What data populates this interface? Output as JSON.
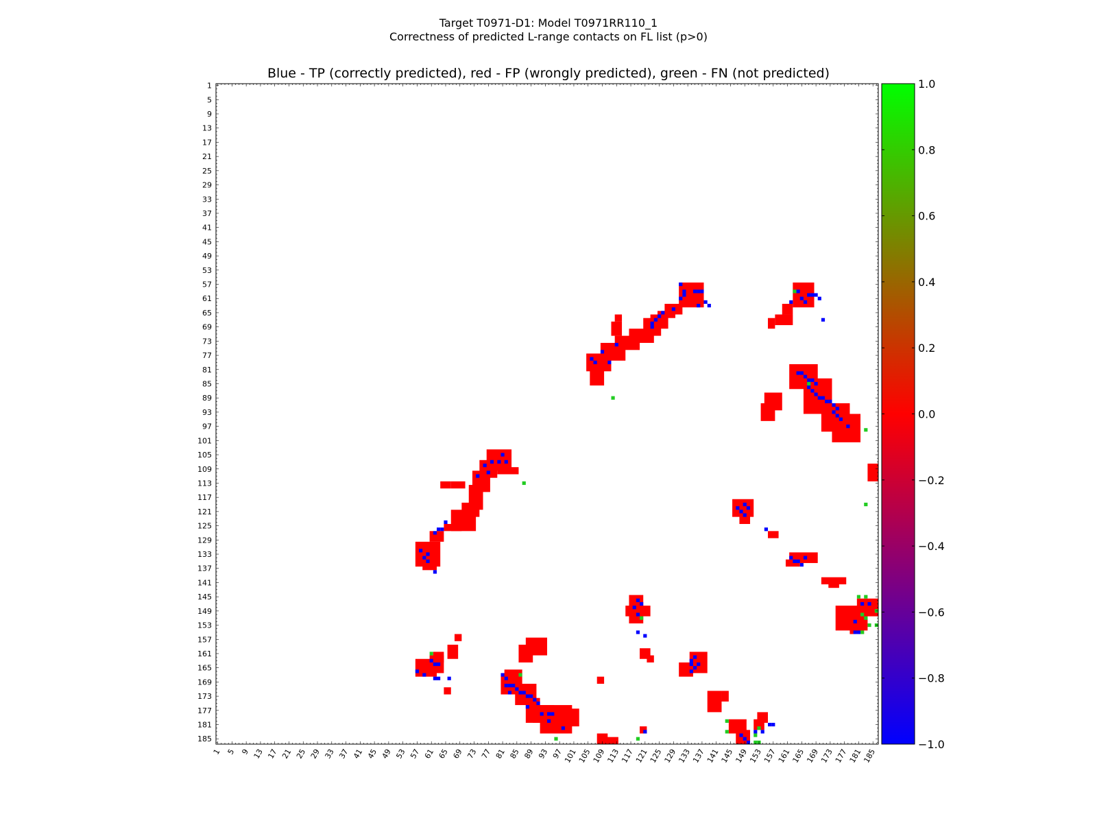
{
  "figure": {
    "title_line1": "Target T0971-D1: Model T0971RR110_1",
    "title_line2": "Correctness of predicted L-range contacts on FL list (p>0)"
  },
  "chart_data": {
    "type": "heatmap",
    "title": "Blue - TP (correctly predicted), red - FP (wrongly predicted), green - FN (not predicted)",
    "xlabel": "",
    "ylabel": "",
    "x_ticks": [
      1,
      5,
      9,
      13,
      17,
      21,
      25,
      29,
      33,
      37,
      41,
      45,
      49,
      53,
      57,
      61,
      65,
      69,
      73,
      77,
      81,
      85,
      89,
      93,
      97,
      101,
      105,
      109,
      113,
      117,
      121,
      125,
      129,
      133,
      137,
      141,
      145,
      149,
      153,
      157,
      161,
      165,
      169,
      173,
      177,
      181,
      185
    ],
    "y_ticks": [
      1,
      5,
      9,
      13,
      17,
      21,
      25,
      29,
      33,
      37,
      41,
      45,
      49,
      53,
      57,
      61,
      65,
      69,
      73,
      77,
      81,
      85,
      89,
      93,
      97,
      101,
      105,
      109,
      113,
      117,
      121,
      125,
      129,
      133,
      137,
      141,
      145,
      149,
      153,
      157,
      161,
      165,
      169,
      173,
      177,
      181,
      185
    ],
    "xlim": [
      1,
      186
    ],
    "ylim": [
      1,
      186
    ],
    "colorbar": {
      "range": [
        -1.0,
        1.0
      ],
      "ticks": [
        "1.0",
        "0.8",
        "0.6",
        "0.4",
        "0.2",
        "0.0",
        "−0.2",
        "−0.4",
        "−0.6",
        "−0.8",
        "−1.0"
      ],
      "colors": {
        "low": "#0000ff",
        "mid": "#ff0000",
        "high": "#00ff00"
      }
    },
    "categories": {
      "TP": {
        "value": -1.0,
        "color": "#0000ff"
      },
      "FP": {
        "value": 0.0,
        "color": "#ff0000"
      },
      "FN": {
        "value": 1.0,
        "color": "#22cc22"
      }
    },
    "fp_regions": [
      [
        131,
        57,
        137,
        63
      ],
      [
        127,
        63,
        131,
        65
      ],
      [
        125,
        65,
        129,
        66
      ],
      [
        123,
        66,
        127,
        69
      ],
      [
        121,
        67,
        125,
        71
      ],
      [
        117,
        70,
        123,
        73
      ],
      [
        113,
        72,
        119,
        75
      ],
      [
        109,
        74,
        115,
        78
      ],
      [
        105,
        77,
        111,
        81
      ],
      [
        106,
        81,
        109,
        85
      ],
      [
        112,
        68,
        114,
        71
      ],
      [
        113,
        66,
        114,
        67
      ],
      [
        77,
        104,
        83,
        109
      ],
      [
        75,
        107,
        79,
        111
      ],
      [
        73,
        110,
        77,
        115
      ],
      [
        80,
        109,
        85,
        110
      ],
      [
        72,
        114,
        75,
        120
      ],
      [
        70,
        119,
        74,
        122
      ],
      [
        67,
        121,
        73,
        126
      ],
      [
        65,
        125,
        69,
        126
      ],
      [
        61,
        127,
        64,
        129
      ],
      [
        57,
        130,
        63,
        136
      ],
      [
        59,
        136,
        62,
        137
      ],
      [
        67,
        113,
        70,
        114
      ],
      [
        64,
        113,
        66,
        114
      ],
      [
        163,
        57,
        168,
        63
      ],
      [
        160,
        63,
        162,
        65
      ],
      [
        158,
        66,
        162,
        68
      ],
      [
        156,
        67,
        157,
        69
      ],
      [
        162,
        80,
        169,
        86
      ],
      [
        166,
        84,
        173,
        93
      ],
      [
        171,
        91,
        178,
        98
      ],
      [
        174,
        94,
        181,
        101
      ],
      [
        177,
        98,
        179,
        100
      ],
      [
        155,
        88,
        159,
        92
      ],
      [
        154,
        91,
        157,
        95
      ],
      [
        184,
        108,
        186,
        112
      ],
      [
        146,
        118,
        151,
        122
      ],
      [
        148,
        121,
        150,
        124
      ],
      [
        156,
        127,
        158,
        128
      ],
      [
        162,
        133,
        169,
        135
      ],
      [
        161,
        135,
        164,
        136
      ],
      [
        171,
        140,
        177,
        141
      ],
      [
        173,
        141,
        175,
        142
      ],
      [
        175,
        148,
        183,
        154
      ],
      [
        181,
        146,
        186,
        150
      ],
      [
        179,
        152,
        182,
        155
      ],
      [
        117,
        145,
        120,
        152
      ],
      [
        116,
        148,
        122,
        150
      ],
      [
        120,
        160,
        122,
        162
      ],
      [
        122,
        162,
        123,
        163
      ],
      [
        134,
        161,
        138,
        166
      ],
      [
        131,
        164,
        134,
        167
      ],
      [
        139,
        172,
        142,
        177
      ],
      [
        143,
        172,
        144,
        174
      ],
      [
        57,
        163,
        62,
        167
      ],
      [
        61,
        162,
        64,
        166
      ],
      [
        62,
        161,
        64,
        163
      ],
      [
        66,
        159,
        68,
        162
      ],
      [
        68,
        156,
        69,
        157
      ],
      [
        88,
        157,
        93,
        161
      ],
      [
        86,
        159,
        89,
        163
      ],
      [
        82,
        166,
        86,
        170
      ],
      [
        81,
        167,
        85,
        172
      ],
      [
        85,
        170,
        90,
        175
      ],
      [
        88,
        174,
        91,
        180
      ],
      [
        90,
        176,
        95,
        180
      ],
      [
        92,
        176,
        100,
        183
      ],
      [
        99,
        177,
        102,
        181
      ],
      [
        96,
        181,
        99,
        183
      ],
      [
        108,
        184,
        110,
        186
      ],
      [
        110,
        185,
        113,
        186
      ],
      [
        145,
        180,
        149,
        183
      ],
      [
        147,
        183,
        150,
        186
      ],
      [
        152,
        180,
        154,
        182
      ],
      [
        153,
        178,
        155,
        180
      ],
      [
        108,
        168,
        109,
        169
      ],
      [
        120,
        182,
        121,
        183
      ],
      [
        65,
        171,
        66,
        172
      ]
    ],
    "tp_cells": [
      [
        131,
        57
      ],
      [
        132,
        59
      ],
      [
        135,
        59
      ],
      [
        136,
        59
      ],
      [
        137,
        59
      ],
      [
        132,
        60
      ],
      [
        131,
        61
      ],
      [
        138,
        62
      ],
      [
        139,
        63
      ],
      [
        129,
        64
      ],
      [
        126,
        65
      ],
      [
        125,
        66
      ],
      [
        124,
        67
      ],
      [
        123,
        68
      ],
      [
        123,
        69
      ],
      [
        113,
        74
      ],
      [
        109,
        76
      ],
      [
        107,
        79
      ],
      [
        111,
        79
      ],
      [
        106,
        78
      ],
      [
        81,
        105
      ],
      [
        78,
        107
      ],
      [
        80,
        107
      ],
      [
        82,
        107
      ],
      [
        76,
        108
      ],
      [
        77,
        110
      ],
      [
        74,
        111
      ],
      [
        65,
        124
      ],
      [
        63,
        126
      ],
      [
        64,
        126
      ],
      [
        62,
        127
      ],
      [
        58,
        132
      ],
      [
        60,
        133
      ],
      [
        59,
        134
      ],
      [
        60,
        135
      ],
      [
        62,
        138
      ],
      [
        164,
        59
      ],
      [
        165,
        61
      ],
      [
        166,
        62
      ],
      [
        167,
        60
      ],
      [
        168,
        60
      ],
      [
        169,
        60
      ],
      [
        170,
        61
      ],
      [
        171,
        67
      ],
      [
        162,
        62
      ],
      [
        164,
        82
      ],
      [
        165,
        82
      ],
      [
        166,
        83
      ],
      [
        167,
        84
      ],
      [
        168,
        84
      ],
      [
        169,
        85
      ],
      [
        167,
        85
      ],
      [
        167,
        86
      ],
      [
        168,
        87
      ],
      [
        169,
        88
      ],
      [
        170,
        89
      ],
      [
        171,
        89
      ],
      [
        172,
        90
      ],
      [
        173,
        90
      ],
      [
        174,
        91
      ],
      [
        175,
        92
      ],
      [
        174,
        93
      ],
      [
        175,
        94
      ],
      [
        176,
        95
      ],
      [
        178,
        97
      ],
      [
        147,
        120
      ],
      [
        148,
        121
      ],
      [
        149,
        122
      ],
      [
        150,
        120
      ],
      [
        149,
        119
      ],
      [
        155,
        126
      ],
      [
        162,
        134
      ],
      [
        163,
        135
      ],
      [
        164,
        135
      ],
      [
        165,
        136
      ],
      [
        166,
        134
      ],
      [
        119,
        146
      ],
      [
        118,
        148
      ],
      [
        120,
        147
      ],
      [
        119,
        150
      ],
      [
        135,
        162
      ],
      [
        134,
        163
      ],
      [
        134,
        164
      ],
      [
        136,
        164
      ],
      [
        135,
        165
      ],
      [
        134,
        166
      ],
      [
        57,
        166
      ],
      [
        59,
        167
      ],
      [
        61,
        163
      ],
      [
        62,
        164
      ],
      [
        63,
        164
      ],
      [
        62,
        168
      ],
      [
        63,
        168
      ],
      [
        66,
        168
      ],
      [
        81,
        167
      ],
      [
        82,
        168
      ],
      [
        82,
        170
      ],
      [
        83,
        170
      ],
      [
        84,
        170
      ],
      [
        85,
        171
      ],
      [
        83,
        172
      ],
      [
        86,
        172
      ],
      [
        87,
        172
      ],
      [
        88,
        173
      ],
      [
        89,
        173
      ],
      [
        90,
        174
      ],
      [
        91,
        175
      ],
      [
        88,
        176
      ],
      [
        92,
        178
      ],
      [
        94,
        178
      ],
      [
        95,
        178
      ],
      [
        94,
        180
      ],
      [
        98,
        182
      ],
      [
        148,
        184
      ],
      [
        149,
        185
      ],
      [
        150,
        186
      ],
      [
        152,
        183
      ],
      [
        154,
        183
      ],
      [
        156,
        181
      ],
      [
        157,
        181
      ],
      [
        121,
        183
      ],
      [
        119,
        155
      ],
      [
        121,
        156
      ],
      [
        182,
        147
      ],
      [
        184,
        147
      ],
      [
        180,
        152
      ],
      [
        180,
        155
      ],
      [
        181,
        155
      ],
      [
        136,
        63
      ]
    ],
    "fn_cells": [
      [
        112,
        89
      ],
      [
        87,
        113
      ],
      [
        163,
        59
      ],
      [
        167,
        85
      ],
      [
        183,
        98
      ],
      [
        183,
        119
      ],
      [
        181,
        145
      ],
      [
        183,
        145
      ],
      [
        182,
        150
      ],
      [
        183,
        151
      ],
      [
        184,
        153
      ],
      [
        186,
        149
      ],
      [
        186,
        153
      ],
      [
        182,
        155
      ],
      [
        61,
        161
      ],
      [
        120,
        151
      ],
      [
        96,
        185
      ],
      [
        119,
        185
      ],
      [
        144,
        180
      ],
      [
        144,
        183
      ],
      [
        153,
        182
      ],
      [
        153,
        186
      ],
      [
        152,
        186
      ],
      [
        152,
        184
      ],
      [
        86,
        167
      ]
    ]
  }
}
